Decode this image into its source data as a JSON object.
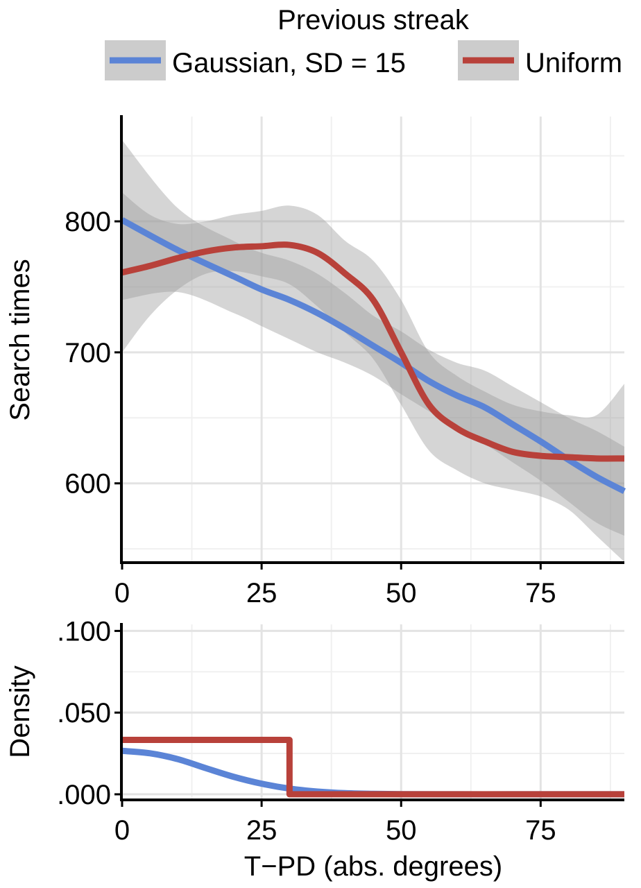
{
  "legend": {
    "title": "Previous streak",
    "entries": [
      "Gaussian, SD = 15",
      "Uniform"
    ]
  },
  "colors": {
    "gaussian": "#5b84d6",
    "uniform": "#b8413a",
    "ribbon": "#9a9a9a",
    "legend_key_bg": "#cccccc",
    "grid_major": "#e3e3e3",
    "grid_minor": "#f0f0f0"
  },
  "chart_data": [
    {
      "type": "line",
      "panel": "top",
      "ylabel": "Search times",
      "xlim": [
        0,
        90
      ],
      "ylim": [
        540,
        880
      ],
      "x_ticks": [
        0,
        25,
        50,
        75
      ],
      "x_tick_labels": [
        "0",
        "25",
        "50",
        "75"
      ],
      "y_ticks": [
        600,
        700,
        800
      ],
      "y_tick_labels": [
        "600",
        "700",
        "800"
      ],
      "grid": true,
      "legend_position": "top",
      "series": [
        {
          "name": "Gaussian, SD = 15",
          "x": [
            0,
            10,
            20,
            25,
            30,
            35,
            40,
            45,
            50,
            55,
            60,
            65,
            70,
            75,
            80,
            85,
            90
          ],
          "y": [
            801,
            778,
            758,
            748,
            740,
            730,
            718,
            705,
            692,
            678,
            667,
            658,
            645,
            632,
            618,
            605,
            594
          ],
          "ci_low": [
            740,
            746,
            730,
            720,
            710,
            700,
            692,
            682,
            668,
            655,
            642,
            630,
            616,
            602,
            586,
            570,
            560
          ],
          "ci_high": [
            862,
            810,
            785,
            776,
            770,
            760,
            745,
            728,
            716,
            702,
            692,
            686,
            674,
            662,
            650,
            640,
            628
          ]
        },
        {
          "name": "Uniform",
          "x": [
            0,
            5,
            10,
            15,
            20,
            25,
            30,
            35,
            40,
            45,
            50,
            55,
            60,
            65,
            70,
            75,
            80,
            85,
            90
          ],
          "y": [
            761,
            766,
            772,
            777,
            780,
            781,
            782,
            776,
            760,
            740,
            700,
            660,
            642,
            632,
            624,
            621,
            620,
            619,
            619
          ],
          "ci_low": [
            700,
            728,
            748,
            760,
            762,
            758,
            752,
            735,
            715,
            695,
            660,
            625,
            610,
            600,
            595,
            590,
            580,
            560,
            540
          ],
          "ci_high": [
            822,
            805,
            798,
            800,
            805,
            808,
            812,
            805,
            785,
            770,
            740,
            700,
            682,
            670,
            660,
            655,
            652,
            652,
            676
          ]
        }
      ]
    },
    {
      "type": "line",
      "panel": "bottom",
      "xlabel": "T−PD (abs. degrees)",
      "ylabel": "Density",
      "xlim": [
        0,
        90
      ],
      "ylim": [
        -0.003,
        0.104
      ],
      "x_ticks": [
        0,
        25,
        50,
        75
      ],
      "x_tick_labels": [
        "0",
        "25",
        "50",
        "75"
      ],
      "y_ticks": [
        0,
        0.05,
        0.1
      ],
      "y_tick_labels": [
        ".000",
        ".050",
        ".100"
      ],
      "grid": true,
      "series": [
        {
          "name": "Gaussian, SD = 15",
          "x": [
            0,
            5,
            10,
            15,
            20,
            25,
            30,
            35,
            40,
            45,
            50,
            60,
            70,
            80,
            90
          ],
          "y": [
            0.0266,
            0.0251,
            0.0215,
            0.016,
            0.0107,
            0.0065,
            0.0035,
            0.0017,
            0.0007,
            0.0003,
            0.0001,
            0.0,
            0.0,
            0.0,
            0.0
          ]
        },
        {
          "name": "Uniform",
          "x": [
            0,
            30,
            30,
            90
          ],
          "y": [
            0.0333,
            0.0333,
            0.0,
            0.0
          ]
        }
      ]
    }
  ]
}
